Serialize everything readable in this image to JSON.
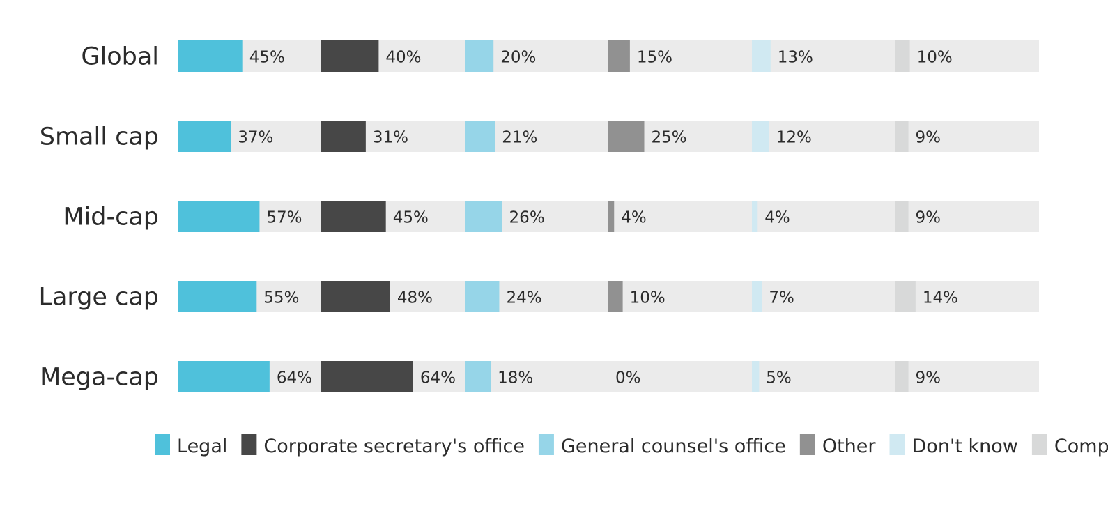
{
  "chart_data": {
    "type": "bar",
    "orientation": "horizontal",
    "layout": "small-multiples",
    "value_format": "percent",
    "xlim": [
      0,
      100
    ],
    "grid": false,
    "legend_position": "bottom",
    "categories": [
      "Global",
      "Small cap",
      "Mid-cap",
      "Large cap",
      "Mega-cap"
    ],
    "series": [
      {
        "name": "Legal",
        "color": "#4fc1db",
        "values": [
          45,
          37,
          57,
          55,
          64
        ]
      },
      {
        "name": "Corporate secretary's office",
        "color": "#474747",
        "values": [
          40,
          31,
          45,
          48,
          64
        ]
      },
      {
        "name": "General counsel's office",
        "color": "#96d5e8",
        "values": [
          20,
          21,
          26,
          24,
          18
        ]
      },
      {
        "name": "Other",
        "color": "#919191",
        "values": [
          15,
          25,
          4,
          10,
          0
        ]
      },
      {
        "name": "Don't know",
        "color": "#d0e9f2",
        "values": [
          13,
          12,
          4,
          7,
          5
        ]
      },
      {
        "name": "Compliance",
        "color": "#d8d9d9",
        "values": [
          10,
          9,
          9,
          14,
          9
        ]
      }
    ],
    "track_color": "#ebebeb"
  }
}
